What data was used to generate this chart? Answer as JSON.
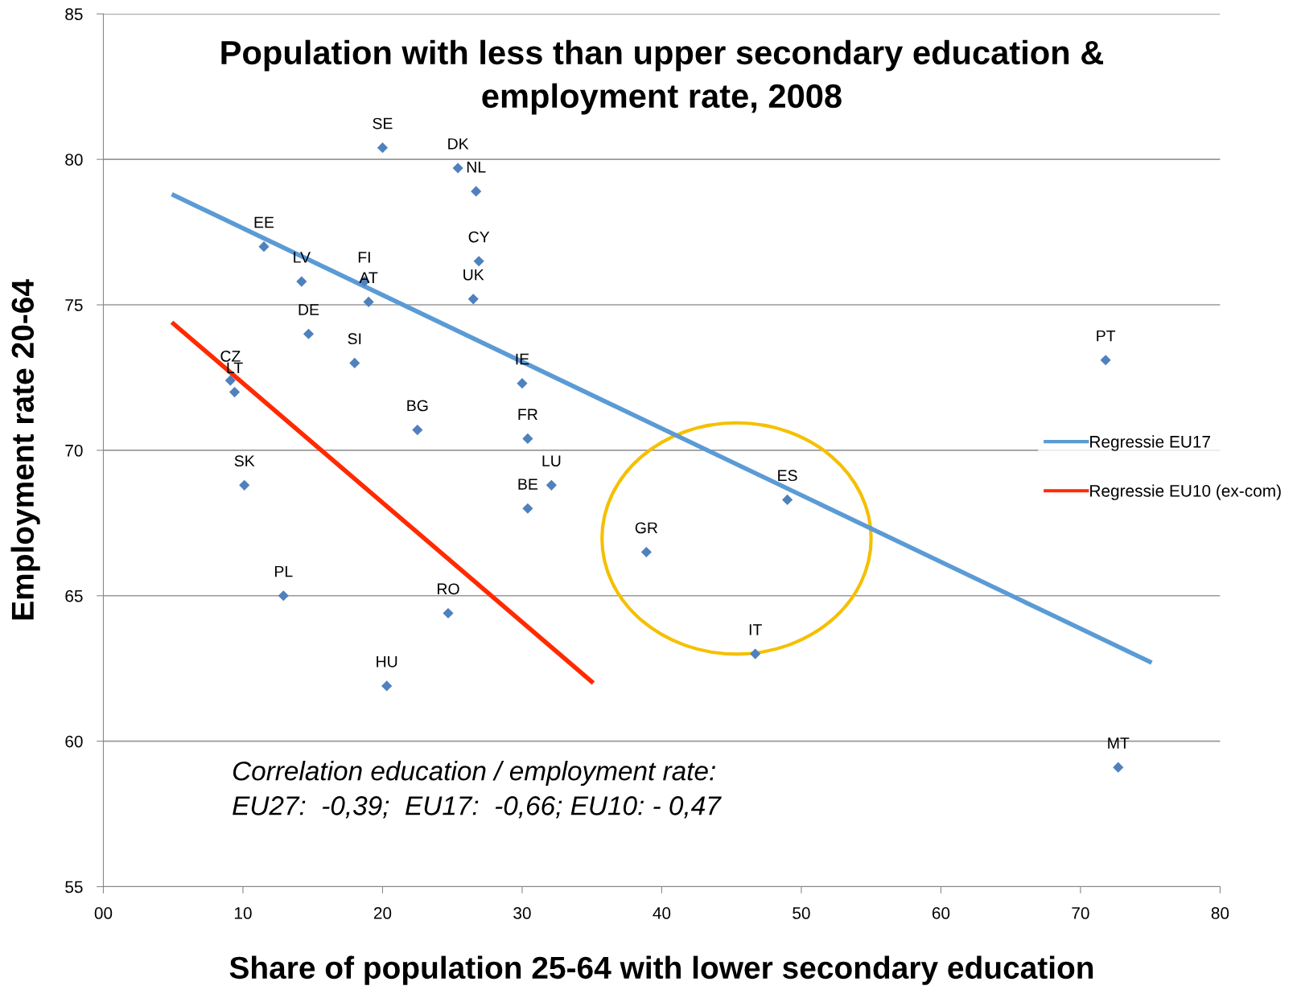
{
  "chart_data": {
    "type": "scatter",
    "title": "Population with less than upper secondary education &\nemployment rate, 2008",
    "xlabel": "Share of population 25-64 with lower secondary education",
    "ylabel": "Employment rate 20-64",
    "x": [
      20.0,
      25.4,
      26.7,
      11.5,
      26.9,
      14.2,
      18.7,
      19.0,
      26.5,
      14.7,
      18.0,
      71.8,
      9.1,
      9.4,
      30.0,
      22.5,
      30.4,
      10.1,
      32.1,
      30.4,
      49.0,
      38.9,
      12.9,
      24.7,
      46.7,
      20.3,
      72.7
    ],
    "series": [
      {
        "color": "#4f81bd",
        "marker": "diamond",
        "values": [
          80.4,
          79.7,
          78.9,
          77.0,
          76.5,
          75.8,
          75.8,
          75.1,
          75.2,
          74.0,
          73.0,
          73.1,
          72.4,
          72.0,
          72.3,
          70.7,
          70.4,
          68.8,
          68.8,
          68.0,
          68.3,
          66.5,
          65.0,
          64.4,
          63.0,
          61.9,
          59.1
        ]
      },
      {
        "type": "line",
        "name": "Regressie EU17",
        "color": "#5b9bd5",
        "x": [
          4.9,
          75.1
        ],
        "values": [
          78.8,
          62.7
        ]
      },
      {
        "type": "line",
        "name": "Regressie EU10 (ex-com)",
        "color": "#ff2a00",
        "x": [
          4.9,
          35.1
        ],
        "values": [
          74.4,
          62.0
        ]
      }
    ],
    "annotations": [
      {
        "text": "SE",
        "x": 20.0,
        "y": 80.4
      },
      {
        "text": "DK",
        "x": 25.4,
        "y": 79.7
      },
      {
        "text": "NL",
        "x": 26.7,
        "y": 78.9
      },
      {
        "text": "EE",
        "x": 11.5,
        "y": 77.0
      },
      {
        "text": "CY",
        "x": 26.9,
        "y": 76.5
      },
      {
        "text": "LV",
        "x": 14.2,
        "y": 75.8
      },
      {
        "text": "FI",
        "x": 18.7,
        "y": 75.8
      },
      {
        "text": "AT",
        "x": 19.0,
        "y": 75.1
      },
      {
        "text": "UK",
        "x": 26.5,
        "y": 75.2
      },
      {
        "text": "DE",
        "x": 14.7,
        "y": 74.0
      },
      {
        "text": "SI",
        "x": 18.0,
        "y": 73.0
      },
      {
        "text": "PT",
        "x": 71.8,
        "y": 73.1
      },
      {
        "text": "CZ",
        "x": 9.1,
        "y": 72.4
      },
      {
        "text": "LT",
        "x": 9.4,
        "y": 72.0
      },
      {
        "text": "IE",
        "x": 30.0,
        "y": 72.3
      },
      {
        "text": "BG",
        "x": 22.5,
        "y": 70.7
      },
      {
        "text": "FR",
        "x": 30.4,
        "y": 70.4
      },
      {
        "text": "SK",
        "x": 10.1,
        "y": 68.8
      },
      {
        "text": "LU",
        "x": 32.1,
        "y": 68.8
      },
      {
        "text": "BE",
        "x": 30.4,
        "y": 68.0
      },
      {
        "text": "ES",
        "x": 49.0,
        "y": 68.3
      },
      {
        "text": "GR",
        "x": 38.9,
        "y": 66.5
      },
      {
        "text": "PL",
        "x": 12.9,
        "y": 65.0
      },
      {
        "text": "RO",
        "x": 24.7,
        "y": 64.4
      },
      {
        "text": "IT",
        "x": 46.7,
        "y": 63.0
      },
      {
        "text": "HU",
        "x": 20.3,
        "y": 61.9
      },
      {
        "text": "MT",
        "x": 72.7,
        "y": 59.1
      },
      "Correlation education / employment rate:\nEU27:  -0,39;  EU17:  -0,66; EU10: - 0,47"
    ],
    "xlim": [
      0,
      80
    ],
    "xticks": [
      {
        "value": 0,
        "label": "00"
      },
      10,
      20,
      30,
      40,
      50,
      60,
      70,
      80
    ],
    "ylim": [
      55,
      85
    ],
    "yticks": [
      55,
      60,
      65,
      70,
      75,
      80,
      85
    ],
    "grid": "y",
    "legend": "right",
    "line_style": "solid"
  }
}
